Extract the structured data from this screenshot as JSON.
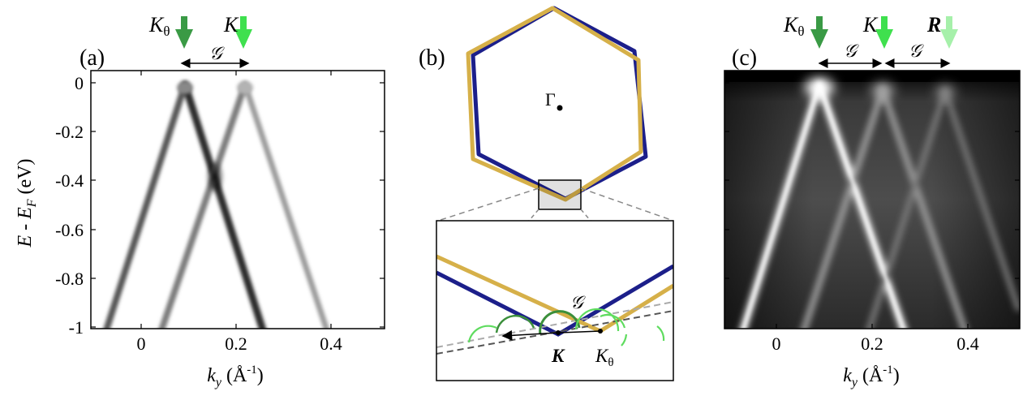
{
  "panels": {
    "a": {
      "label": "(a)",
      "ylabel_main": "E - E",
      "ylabel_sub": "F",
      "ylabel_unit": " (eV)",
      "xlabel_main": "k",
      "xlabel_sub": "y",
      "xlabel_unit": " (Å",
      "xlabel_exp": "-1",
      "xlabel_close": ")",
      "yticks": [
        "0",
        "-0.2",
        "-0.4",
        "-0.6",
        "-0.8",
        "-1"
      ],
      "xticks": [
        "0",
        "0.2",
        "0.4"
      ],
      "arrow_labels": {
        "k_theta_main": "K",
        "k_theta_sub": "θ",
        "k": "K",
        "g": "𝒢"
      },
      "arrow_colors": {
        "k_theta": "#3a9a45",
        "k": "#3fe04e"
      }
    },
    "b": {
      "label": "(b)",
      "gamma_label": "Γ",
      "inset_labels": {
        "g": "𝒢",
        "k": "K",
        "k_theta_main": "K",
        "k_theta_sub": "θ"
      },
      "colors": {
        "hex_blue": "#1c1f8a",
        "hex_gold": "#d6b049",
        "arc_green": "#5fdc5f",
        "arc_dark_green": "#3b8f3b"
      }
    },
    "c": {
      "label": "(c)",
      "xlabel_main": "k",
      "xlabel_sub": "y",
      "xlabel_unit": " (Å",
      "xlabel_exp": "-1",
      "xlabel_close": ")",
      "xticks": [
        "0",
        "0.2",
        "0.4"
      ],
      "arrow_labels": {
        "k_theta_main": "K",
        "k_theta_sub": "θ",
        "k": "K",
        "r": "R",
        "g1": "𝒢",
        "g2": "𝒢"
      },
      "arrow_colors": {
        "k_theta": "#3a9a45",
        "k": "#3fe04e",
        "r": "#a6f0aa"
      }
    }
  }
}
